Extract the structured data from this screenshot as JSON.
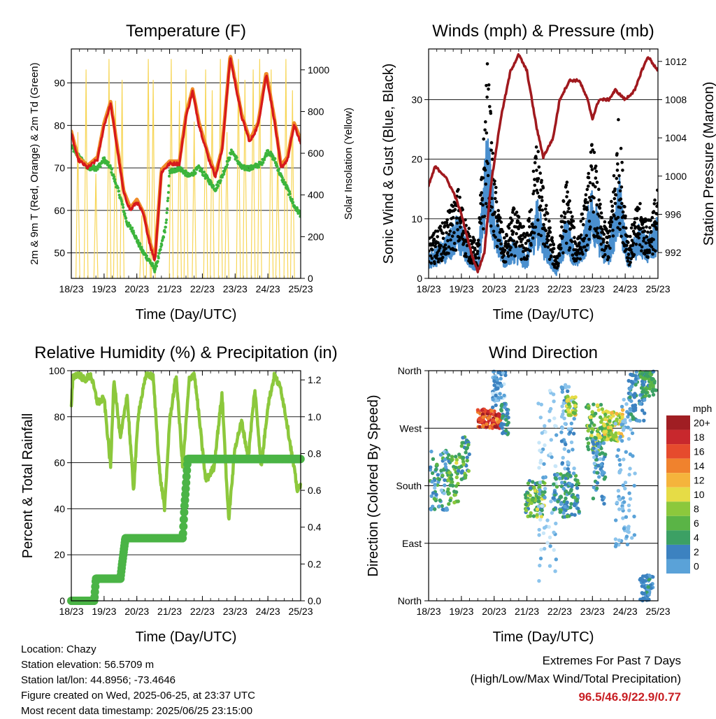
{
  "x_tick_labels": [
    "18/23",
    "19/23",
    "20/23",
    "21/23",
    "22/23",
    "23/23",
    "24/23",
    "25/23"
  ],
  "colors": {
    "temp_2m": "#d7191c",
    "temp_9m": "#f08c28",
    "dewpoint": "#3cb43c",
    "insolation": "#f7d658",
    "wind": "#4a8fce",
    "gust": "#000000",
    "pressure": "#a0191e",
    "rh": "#8cc83c",
    "precip": "#4bb446",
    "extremes_text": "#c81e23"
  },
  "speed_colors": [
    "#c8e6f8",
    "#8cc4ec",
    "#5aa2d8",
    "#3c82c0",
    "#3ca064",
    "#5ab446",
    "#8cc83c",
    "#e6dc46",
    "#f5b43c",
    "#f0822d",
    "#e64b2d",
    "#c8282d",
    "#a01e23"
  ],
  "charts": [
    {
      "name": "temperature",
      "title": "Temperature (F)",
      "xlabel": "Time (Day/UTC)",
      "ylabel_left": "2m & 9m T (Red, Orange) & 2m Td (Green)",
      "ylabel_right": "Solar Insolation (Yellow)",
      "yticks_left": [
        "50",
        "60",
        "70",
        "80",
        "90"
      ],
      "yticks_right": [
        "0",
        "200",
        "400",
        "600",
        "800",
        "1000"
      ]
    },
    {
      "name": "winds",
      "title": "Winds (mph) & Pressure (mb)",
      "xlabel": "Time (Day/UTC)",
      "ylabel_left": "Sonic Wind & Gust (Blue, Black)",
      "ylabel_right": "Station Pressure (Maroon)",
      "yticks_left": [
        "0",
        "10",
        "20",
        "30"
      ],
      "yticks_right": [
        "992",
        "996",
        "1000",
        "1004",
        "1008",
        "1012"
      ]
    },
    {
      "name": "humidity",
      "title": "Relative Humidity (%) & Precipitation (in)",
      "xlabel": "Time (Day/UTC)",
      "ylabel_left": "Percent & Total Rainfall",
      "yticks_left": [
        "0",
        "20",
        "40",
        "60",
        "80",
        "100"
      ],
      "yticks_right": [
        "0.0",
        "0.2",
        "0.4",
        "0.6",
        "0.8",
        "1.0",
        "1.2"
      ]
    },
    {
      "name": "direction",
      "title": "Wind Direction",
      "xlabel": "Time (Day/UTC)",
      "ylabel_left": "Direction (Colored By Speed)",
      "yticks_left": [
        "North",
        "East",
        "South",
        "West",
        "North"
      ],
      "legend_title": "mph",
      "legend_labels": [
        "0",
        "2",
        "4",
        "6",
        "8",
        "10",
        "12",
        "14",
        "16",
        "18",
        "20+"
      ]
    }
  ],
  "chart_data": [
    {
      "type": "line",
      "title": "Temperature (F)",
      "x_range_days": [
        0,
        7
      ],
      "ylim_left": [
        44,
        98
      ],
      "ylim_right": [
        0,
        1100
      ],
      "series": [
        {
          "name": "2m T (Red)",
          "x": [
            0,
            0.2,
            0.5,
            0.8,
            1.0,
            1.2,
            1.45,
            1.6,
            1.8,
            2.0,
            2.2,
            2.4,
            2.55,
            2.75,
            3.0,
            3.3,
            3.5,
            3.7,
            3.9,
            4.2,
            4.4,
            4.6,
            4.85,
            5.0,
            5.2,
            5.45,
            5.7,
            5.95,
            6.2,
            6.4,
            6.6,
            6.8,
            7.0
          ],
          "y": [
            78,
            72,
            70,
            72,
            80,
            85,
            72,
            64,
            60,
            62,
            59,
            52,
            48,
            69,
            71,
            71,
            82,
            88,
            80,
            72,
            68,
            74,
            96,
            90,
            82,
            76,
            80,
            92,
            81,
            70,
            72,
            80,
            76
          ]
        },
        {
          "name": "2m Td (Green)",
          "x": [
            0,
            0.5,
            0.8,
            1.0,
            1.2,
            1.5,
            1.7,
            1.9,
            2.0,
            2.2,
            2.4,
            2.55,
            2.7,
            2.9,
            3.0,
            3.3,
            3.6,
            3.9,
            4.2,
            4.4,
            4.6,
            4.9,
            5.2,
            5.5,
            5.8,
            6.0,
            6.2,
            6.4,
            6.6,
            6.8,
            7.0
          ],
          "y": [
            75,
            70,
            70,
            72,
            70,
            63,
            57,
            55,
            53,
            50,
            48,
            46,
            50,
            57,
            69,
            70,
            68,
            70,
            67,
            65,
            68,
            74,
            70,
            70,
            71,
            74,
            72,
            68,
            65,
            61,
            59
          ]
        },
        {
          "name": "Solar Insolation (Yellow)",
          "axis": "right",
          "peaks_day": [
            0.2,
            0.45,
            0.75,
            1.15,
            1.35,
            1.55,
            2.15,
            2.35,
            2.5,
            3.05,
            3.3,
            3.5,
            3.75,
            4.1,
            4.3,
            4.55,
            4.75,
            5.1,
            5.3,
            5.55,
            5.75,
            6.1,
            6.3,
            6.55,
            6.75
          ],
          "peaks_wm2": [
            700,
            1000,
            500,
            1050,
            850,
            950,
            300,
            1050,
            950,
            1050,
            850,
            1000,
            750,
            1000,
            900,
            1050,
            700,
            1050,
            950,
            1000,
            1050,
            1000,
            650,
            1050,
            900
          ]
        }
      ]
    },
    {
      "type": "scatter",
      "title": "Winds (mph) & Pressure (mb)",
      "x_range_days": [
        0,
        7
      ],
      "ylim_left": [
        0,
        38.5
      ],
      "ylim_right": [
        989.3,
        1013.3
      ],
      "series": [
        {
          "name": "Sonic Wind (Blue)",
          "x": [
            0,
            0.5,
            0.9,
            1.2,
            1.5,
            1.8,
            2.0,
            2.3,
            2.6,
            3.0,
            3.3,
            3.6,
            3.9,
            4.2,
            4.5,
            4.8,
            5.0,
            5.3,
            5.5,
            5.8,
            6.1,
            6.4,
            6.7,
            7.0
          ],
          "y": [
            3,
            5,
            8,
            4,
            2,
            20,
            10,
            3,
            5,
            3,
            10,
            5,
            1,
            8,
            3,
            7,
            12,
            5,
            4,
            13,
            3,
            7,
            5,
            8
          ]
        },
        {
          "name": "Gust (Black)",
          "x": [
            0,
            0.5,
            0.9,
            1.2,
            1.5,
            1.8,
            2.0,
            2.3,
            2.6,
            3.0,
            3.3,
            3.6,
            3.9,
            4.2,
            4.5,
            4.8,
            5.0,
            5.3,
            5.5,
            5.8,
            6.1,
            6.4,
            6.7,
            7.0
          ],
          "y": [
            6,
            9,
            14,
            8,
            5,
            34,
            16,
            6,
            11,
            7,
            22,
            11,
            3,
            16,
            6,
            13,
            22,
            9,
            8,
            25,
            6,
            12,
            9,
            14
          ]
        },
        {
          "name": "Station Pressure (Maroon)",
          "axis": "right",
          "x": [
            0,
            0.2,
            0.5,
            0.8,
            1.0,
            1.3,
            1.5,
            1.7,
            1.9,
            2.2,
            2.5,
            2.75,
            3.0,
            3.3,
            3.5,
            3.8,
            4.0,
            4.3,
            4.6,
            4.85,
            5.0,
            5.2,
            5.5,
            5.7,
            6.0,
            6.3,
            6.5,
            6.7,
            7.0
          ],
          "y": [
            999,
            1001,
            1000,
            998,
            996,
            992,
            990,
            992,
            999,
            1006,
            1011,
            1012.7,
            1011,
            1005,
            1002,
            1004,
            1008,
            1010,
            1010,
            1008,
            1006,
            1008,
            1008,
            1009,
            1008,
            1009,
            1011,
            1012.5,
            1011
          ]
        }
      ]
    },
    {
      "type": "line",
      "title": "Relative Humidity (%) & Precipitation (in)",
      "x_range_days": [
        0,
        7
      ],
      "ylim_left": [
        0,
        100
      ],
      "ylim_right": [
        0,
        1.25
      ],
      "series": [
        {
          "name": "Relative Humidity",
          "x": [
            0,
            0.05,
            0.2,
            0.4,
            0.6,
            0.8,
            1.0,
            1.2,
            1.3,
            1.5,
            1.7,
            1.9,
            2.05,
            2.3,
            2.5,
            2.7,
            2.85,
            3.0,
            3.2,
            3.4,
            3.6,
            3.75,
            3.9,
            4.1,
            4.35,
            4.6,
            4.8,
            5.0,
            5.2,
            5.4,
            5.6,
            5.8,
            6.0,
            6.2,
            6.4,
            6.55,
            6.75,
            6.9,
            7.0
          ],
          "y": [
            84,
            97,
            99,
            96,
            98,
            86,
            88,
            58,
            97,
            70,
            90,
            48,
            82,
            99,
            97,
            55,
            40,
            78,
            98,
            58,
            96,
            99,
            80,
            52,
            58,
            90,
            35,
            67,
            78,
            62,
            92,
            58,
            85,
            98,
            92,
            80,
            62,
            48,
            50
          ]
        },
        {
          "name": "Total Precipitation",
          "axis": "right",
          "x": [
            0,
            0.7,
            0.75,
            1.5,
            1.55,
            1.65,
            2.0,
            3.4,
            3.45,
            3.5,
            3.55,
            7.0
          ],
          "y": [
            0,
            0,
            0.12,
            0.12,
            0.2,
            0.34,
            0.34,
            0.34,
            0.5,
            0.63,
            0.77,
            0.77
          ]
        }
      ]
    },
    {
      "type": "scatter",
      "title": "Wind Direction",
      "x_range_days": [
        0,
        7
      ],
      "ylim": [
        0,
        360
      ],
      "y_ticks": [
        [
          0,
          "North"
        ],
        [
          90,
          "East"
        ],
        [
          180,
          "South"
        ],
        [
          270,
          "West"
        ],
        [
          360,
          "North"
        ]
      ],
      "color_scale_mph": [
        0,
        20
      ],
      "clusters": [
        {
          "x": [
            0.05,
            0.6
          ],
          "dir": [
            140,
            240
          ],
          "mph": [
            2,
            8
          ]
        },
        {
          "x": [
            0.6,
            0.95
          ],
          "dir": [
            150,
            230
          ],
          "mph": [
            5,
            11
          ]
        },
        {
          "x": [
            1.0,
            1.25
          ],
          "dir": [
            190,
            260
          ],
          "mph": [
            4,
            10
          ]
        },
        {
          "x": [
            1.5,
            2.2
          ],
          "dir": [
            270,
            300
          ],
          "mph": [
            14,
            20
          ]
        },
        {
          "x": [
            1.95,
            2.35
          ],
          "dir": [
            300,
            360
          ],
          "mph": [
            0,
            6
          ]
        },
        {
          "x": [
            2.2,
            2.45
          ],
          "dir": [
            260,
            310
          ],
          "mph": [
            3,
            7
          ]
        },
        {
          "x": [
            2.95,
            3.55
          ],
          "dir": [
            130,
            190
          ],
          "mph": [
            5,
            12
          ]
        },
        {
          "x": [
            3.35,
            3.9
          ],
          "dir": [
            30,
            330
          ],
          "mph": [
            0,
            3
          ]
        },
        {
          "x": [
            4.05,
            4.45
          ],
          "dir": [
            200,
            340
          ],
          "mph": [
            1,
            5
          ]
        },
        {
          "x": [
            3.8,
            4.6
          ],
          "dir": [
            130,
            200
          ],
          "mph": [
            3,
            8
          ]
        },
        {
          "x": [
            4.2,
            4.5
          ],
          "dir": [
            290,
            320
          ],
          "mph": [
            8,
            13
          ]
        },
        {
          "x": [
            4.8,
            5.35
          ],
          "dir": [
            230,
            310
          ],
          "mph": [
            6,
            12
          ]
        },
        {
          "x": [
            5.0,
            5.4
          ],
          "dir": [
            150,
            260
          ],
          "mph": [
            2,
            7
          ]
        },
        {
          "x": [
            5.35,
            5.95
          ],
          "dir": [
            250,
            300
          ],
          "mph": [
            8,
            14
          ]
        },
        {
          "x": [
            5.7,
            6.3
          ],
          "dir": [
            80,
            320
          ],
          "mph": [
            1,
            4
          ]
        },
        {
          "x": [
            6.1,
            6.6
          ],
          "dir": [
            280,
            360
          ],
          "mph": [
            3,
            7
          ]
        },
        {
          "x": [
            6.45,
            6.95
          ],
          "dir": [
            320,
            360
          ],
          "mph": [
            5,
            9
          ]
        },
        {
          "x": [
            6.45,
            6.85
          ],
          "dir": [
            0,
            40
          ],
          "mph": [
            3,
            6
          ]
        }
      ]
    }
  ],
  "info": {
    "location": "Location: Chazy",
    "elevation": "Station elevation: 56.5709 m",
    "latlon": "Station lat/lon: 44.8956; -73.4646",
    "created": "Figure created on Wed, 2025-06-25, at 23:37 UTC",
    "recent": "Most recent data timestamp: 2025/06/25 23:15:00"
  },
  "extremes": {
    "heading": "Extremes For Past 7 Days",
    "subheading": "(High/Low/Max Wind/Total Precipitation)",
    "values": "96.5/46.9/22.9/0.77"
  }
}
